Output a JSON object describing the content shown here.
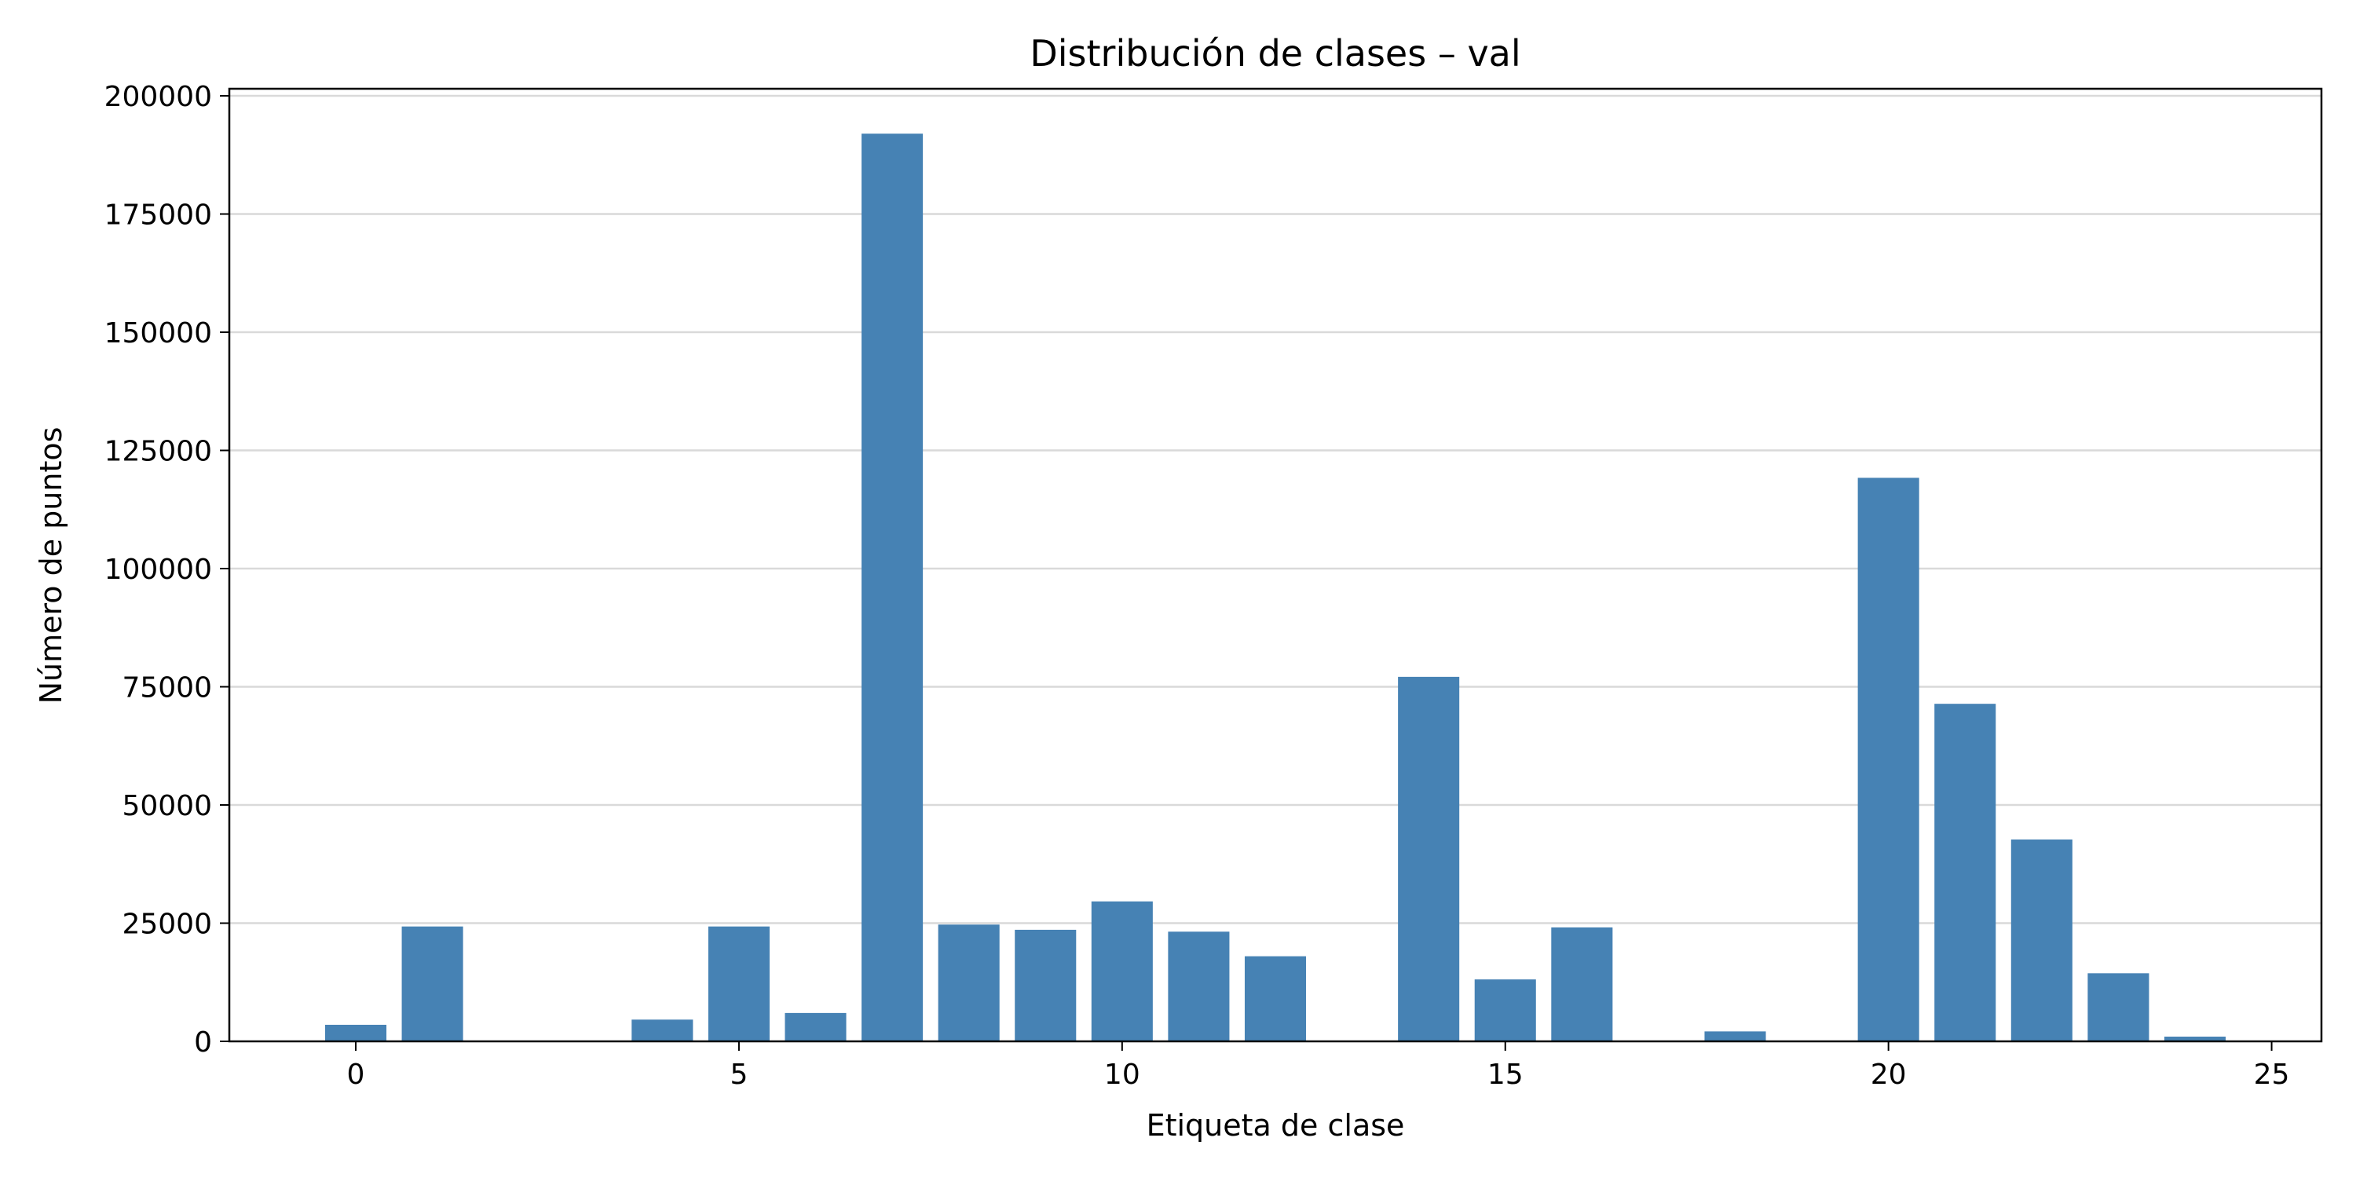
{
  "chart_data": {
    "type": "bar",
    "title": "Distribución de clases – val",
    "xlabel": "Etiqueta de clase",
    "ylabel": "Número de puntos",
    "x": [
      0,
      1,
      2,
      3,
      4,
      5,
      6,
      7,
      8,
      9,
      10,
      11,
      12,
      13,
      14,
      15,
      16,
      17,
      18,
      19,
      20,
      21,
      22,
      23,
      24,
      25
    ],
    "values": [
      3500,
      24300,
      0,
      0,
      4600,
      24300,
      6000,
      192000,
      24700,
      23600,
      29600,
      23200,
      18000,
      0,
      77100,
      13100,
      24100,
      0,
      2100,
      0,
      119200,
      71400,
      42700,
      14400,
      1000,
      0
    ],
    "xlim": [
      -1.65,
      25.65
    ],
    "ylim": [
      0,
      201500
    ],
    "xticks": [
      0,
      5,
      10,
      15,
      20,
      25
    ],
    "yticks": [
      0,
      25000,
      50000,
      75000,
      100000,
      125000,
      150000,
      175000,
      200000
    ],
    "grid": "y",
    "bar_color": "#4682b4",
    "grid_color": "#d9d9d9"
  }
}
